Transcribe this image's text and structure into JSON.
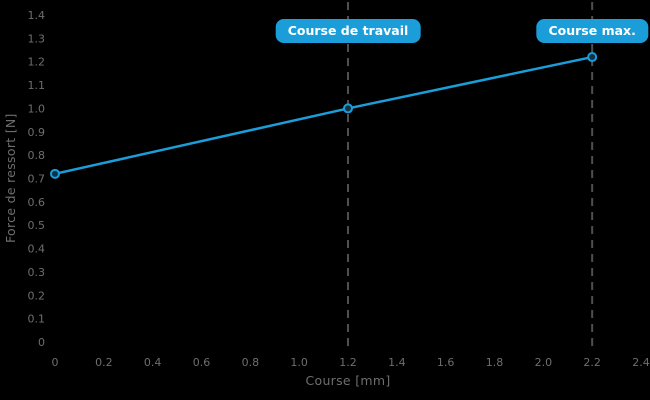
{
  "chart_data": {
    "type": "line",
    "title": "",
    "xlabel": "Course [mm]",
    "ylabel": "Force de ressort [N]",
    "xlim": [
      0,
      2.4
    ],
    "ylim": [
      0,
      1.4
    ],
    "grid": false,
    "legend": "none",
    "x_ticks": {
      "values": [
        0,
        0.2,
        0.4,
        0.6,
        0.8,
        1.0,
        1.2,
        1.4,
        1.6,
        1.8,
        2.0,
        2.2,
        2.4
      ],
      "labels": [
        "0",
        "0.2",
        "0.4",
        "0.6",
        "0.8",
        "1.0",
        "1.2",
        "1.4",
        "1.6",
        "1.8",
        "2.0",
        "2.2",
        "2.4"
      ]
    },
    "y_ticks": {
      "values": [
        0,
        0.1,
        0.2,
        0.3,
        0.4,
        0.5,
        0.6,
        0.7,
        0.8,
        0.9,
        1.0,
        1.1,
        1.2,
        1.3,
        1.4
      ],
      "labels": [
        "0",
        "0.1",
        "0.2",
        "0.3",
        "0.4",
        "0.5",
        "0.6",
        "0.7",
        "0.8",
        "0.9",
        "1.0",
        "1.1",
        "1.2",
        "1.3",
        "1.4"
      ]
    },
    "series": [
      {
        "x": [
          0,
          1.2,
          2.2
        ],
        "y": [
          0.72,
          1.0,
          1.22
        ]
      }
    ],
    "annotations": [
      {
        "label": "Course de travail",
        "x": 1.2
      },
      {
        "label": "Course max.",
        "x": 2.2
      }
    ],
    "colors": {
      "background": "#000000",
      "line": "#1a9dd9",
      "marker_fill": "#0f3346",
      "chip_background": "#1a9dd9",
      "chip_text": "#ffffff",
      "axis_text": "#6e6e6e",
      "dashed_line": "#4f4f4f"
    }
  }
}
